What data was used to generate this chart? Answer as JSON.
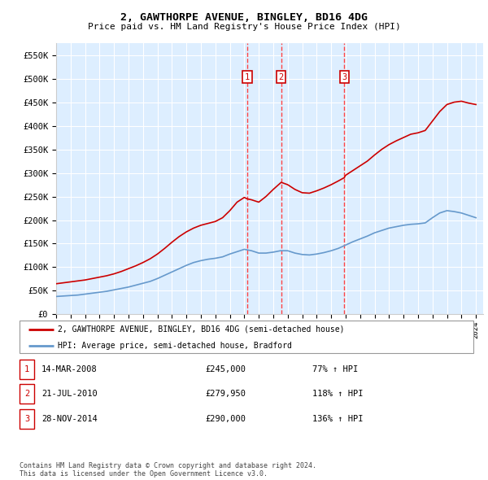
{
  "title": "2, GAWTHORPE AVENUE, BINGLEY, BD16 4DG",
  "subtitle": "Price paid vs. HM Land Registry's House Price Index (HPI)",
  "xlim_start": 1995.0,
  "xlim_end": 2024.5,
  "ylim_min": 0,
  "ylim_max": 575000,
  "yticks": [
    0,
    50000,
    100000,
    150000,
    200000,
    250000,
    300000,
    350000,
    400000,
    450000,
    500000,
    550000
  ],
  "ytick_labels": [
    "£0",
    "£50K",
    "£100K",
    "£150K",
    "£200K",
    "£250K",
    "£300K",
    "£350K",
    "£400K",
    "£450K",
    "£500K",
    "£550K"
  ],
  "xticks": [
    1995,
    1996,
    1997,
    1998,
    1999,
    2000,
    2001,
    2002,
    2003,
    2004,
    2005,
    2006,
    2007,
    2008,
    2009,
    2010,
    2011,
    2012,
    2013,
    2014,
    2015,
    2016,
    2017,
    2018,
    2019,
    2020,
    2021,
    2022,
    2023,
    2024
  ],
  "red_line_color": "#cc0000",
  "blue_line_color": "#6699cc",
  "plot_bg_color": "#ddeeff",
  "grid_color": "#ffffff",
  "vline_color": "#ff4444",
  "sale_dates": [
    2008.2,
    2010.55,
    2014.91
  ],
  "sale_labels": [
    "1",
    "2",
    "3"
  ],
  "legend_line1": "2, GAWTHORPE AVENUE, BINGLEY, BD16 4DG (semi-detached house)",
  "legend_line2": "HPI: Average price, semi-detached house, Bradford",
  "table_data": [
    [
      "1",
      "14-MAR-2008",
      "£245,000",
      "77% ↑ HPI"
    ],
    [
      "2",
      "21-JUL-2010",
      "£279,950",
      "118% ↑ HPI"
    ],
    [
      "3",
      "28-NOV-2014",
      "£290,000",
      "136% ↑ HPI"
    ]
  ],
  "footnote": "Contains HM Land Registry data © Crown copyright and database right 2024.\nThis data is licensed under the Open Government Licence v3.0.",
  "red_x": [
    1995.0,
    1995.5,
    1996.0,
    1996.5,
    1997.0,
    1997.5,
    1998.0,
    1998.5,
    1999.0,
    1999.5,
    2000.0,
    2000.5,
    2001.0,
    2001.5,
    2002.0,
    2002.5,
    2003.0,
    2003.5,
    2004.0,
    2004.5,
    2005.0,
    2005.5,
    2006.0,
    2006.5,
    2007.0,
    2007.5,
    2008.0,
    2008.2,
    2008.5,
    2009.0,
    2009.5,
    2010.0,
    2010.55,
    2011.0,
    2011.5,
    2012.0,
    2012.5,
    2013.0,
    2013.5,
    2014.0,
    2014.5,
    2014.91,
    2015.0,
    2015.5,
    2016.0,
    2016.5,
    2017.0,
    2017.5,
    2018.0,
    2018.5,
    2019.0,
    2019.5,
    2020.0,
    2020.5,
    2021.0,
    2021.5,
    2022.0,
    2022.5,
    2023.0,
    2023.5,
    2024.0
  ],
  "red_y": [
    65000,
    67000,
    69000,
    71000,
    73000,
    76000,
    79000,
    82000,
    86000,
    91000,
    97000,
    103000,
    110000,
    118000,
    128000,
    140000,
    153000,
    165000,
    175000,
    183000,
    189000,
    193000,
    197000,
    205000,
    220000,
    238000,
    248000,
    245000,
    243000,
    238000,
    250000,
    265000,
    280000,
    275000,
    265000,
    258000,
    257000,
    262000,
    268000,
    275000,
    283000,
    290000,
    295000,
    305000,
    315000,
    325000,
    338000,
    350000,
    360000,
    368000,
    375000,
    382000,
    385000,
    390000,
    410000,
    430000,
    445000,
    450000,
    452000,
    448000,
    445000
  ],
  "blue_x": [
    1995.0,
    1995.5,
    1996.0,
    1996.5,
    1997.0,
    1997.5,
    1998.0,
    1998.5,
    1999.0,
    1999.5,
    2000.0,
    2000.5,
    2001.0,
    2001.5,
    2002.0,
    2002.5,
    2003.0,
    2003.5,
    2004.0,
    2004.5,
    2005.0,
    2005.5,
    2006.0,
    2006.5,
    2007.0,
    2007.5,
    2008.0,
    2008.5,
    2009.0,
    2009.5,
    2010.0,
    2010.5,
    2011.0,
    2011.5,
    2012.0,
    2012.5,
    2013.0,
    2013.5,
    2014.0,
    2014.5,
    2015.0,
    2015.5,
    2016.0,
    2016.5,
    2017.0,
    2017.5,
    2018.0,
    2018.5,
    2019.0,
    2019.5,
    2020.0,
    2020.5,
    2021.0,
    2021.5,
    2022.0,
    2022.5,
    2023.0,
    2023.5,
    2024.0
  ],
  "blue_y": [
    38000,
    39000,
    40000,
    41000,
    43000,
    45000,
    47000,
    49000,
    52000,
    55000,
    58000,
    62000,
    66000,
    70000,
    76000,
    83000,
    90000,
    97000,
    104000,
    110000,
    114000,
    117000,
    119000,
    122000,
    128000,
    133000,
    138000,
    135000,
    130000,
    130000,
    132000,
    135000,
    135000,
    130000,
    127000,
    126000,
    128000,
    131000,
    135000,
    140000,
    147000,
    154000,
    160000,
    166000,
    173000,
    178000,
    183000,
    186000,
    189000,
    191000,
    192000,
    194000,
    205000,
    215000,
    220000,
    218000,
    215000,
    210000,
    205000
  ]
}
